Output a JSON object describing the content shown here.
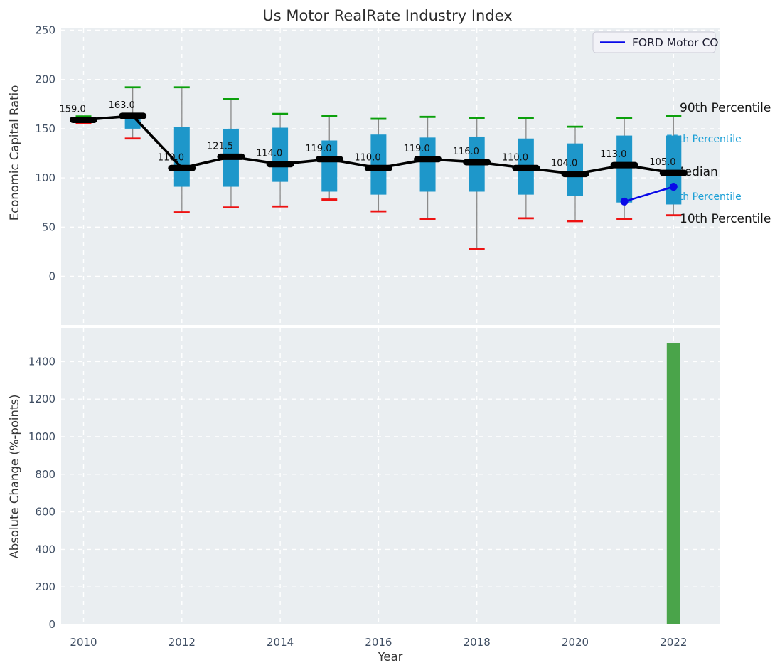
{
  "title": "Us Motor RealRate Industry Index",
  "axes": {
    "x_label": "Year",
    "top_y_label": "Economic Capital Ratio",
    "bottom_y_label": "Absolute Change (%-points)"
  },
  "legend": {
    "label": "FORD Motor CO"
  },
  "annotations": [
    {
      "text": "90th Percentile",
      "color": "#141414"
    },
    {
      "text": "75th Percentile",
      "color": "#1a9fd6"
    },
    {
      "text": "Median",
      "color": "#141414"
    },
    {
      "text": "25th Percentile",
      "color": "#1a9fd6"
    },
    {
      "text": "10th Percentile",
      "color": "#141414"
    }
  ],
  "colors": {
    "figure_background": "#ffffff",
    "plot_background": "#eaeef1",
    "gridline": "#ffffff",
    "box_fill": "#1e97ca",
    "whisker": "#8a8a8a",
    "p90_cap": "#0ba00b",
    "p10_cap": "#ee1212",
    "median": "#000000",
    "ford_line": "#0909e8",
    "bar_fill": "#4aa44a",
    "tick_label": "#3f4e63",
    "legend_background": "#f2f2f7",
    "legend_border": "#cbcbd6"
  },
  "chart_data": [
    {
      "type": "box-timeseries",
      "title": "Us Motor RealRate Industry Index",
      "xlabel": "Year",
      "ylabel": "Economic Capital Ratio",
      "x": [
        2010,
        2011,
        2012,
        2013,
        2014,
        2015,
        2016,
        2017,
        2018,
        2019,
        2020,
        2021,
        2022
      ],
      "xticks": [
        2010,
        2012,
        2014,
        2016,
        2018,
        2020,
        2022
      ],
      "yticks": [
        0,
        50,
        100,
        150,
        200,
        250
      ],
      "ylim": [
        -50,
        253
      ],
      "grid": true,
      "legend_position": "upper right",
      "median_labels": [
        "159.0",
        "163.0",
        "110.0",
        "121.5",
        "114.0",
        "119.0",
        "110.0",
        "119.0",
        "116.0",
        "110.0",
        "104.0",
        "113.0",
        "105.0"
      ],
      "series": [
        {
          "name": "90th percentile",
          "values": [
            162.5,
            192,
            192,
            180,
            165,
            163,
            160,
            162,
            161,
            161,
            152,
            161,
            163
          ]
        },
        {
          "name": "75th percentile",
          "values": [
            161,
            164,
            152,
            150,
            151,
            138,
            144,
            141,
            142,
            140,
            135,
            143,
            143
          ]
        },
        {
          "name": "median",
          "values": [
            159,
            163,
            110,
            121.5,
            114,
            119,
            110,
            119,
            116,
            110,
            104,
            113,
            105
          ]
        },
        {
          "name": "25th percentile",
          "values": [
            157,
            150,
            91,
            91,
            96,
            86,
            83,
            86,
            86,
            83,
            82,
            75,
            73
          ]
        },
        {
          "name": "10th percentile",
          "values": [
            156,
            140,
            65,
            70,
            71,
            78,
            66,
            58,
            28,
            59,
            56,
            58,
            62
          ]
        },
        {
          "name": "FORD Motor CO",
          "x": [
            2021,
            2022
          ],
          "values": [
            76,
            91
          ]
        }
      ]
    },
    {
      "type": "bar",
      "xlabel": "Year",
      "ylabel": "Absolute Change (%-points)",
      "categories": [
        2022
      ],
      "values": [
        1500
      ],
      "yticks": [
        0,
        200,
        400,
        600,
        800,
        1000,
        1200,
        1400
      ],
      "ylim": [
        0,
        1580
      ],
      "grid": true
    }
  ]
}
